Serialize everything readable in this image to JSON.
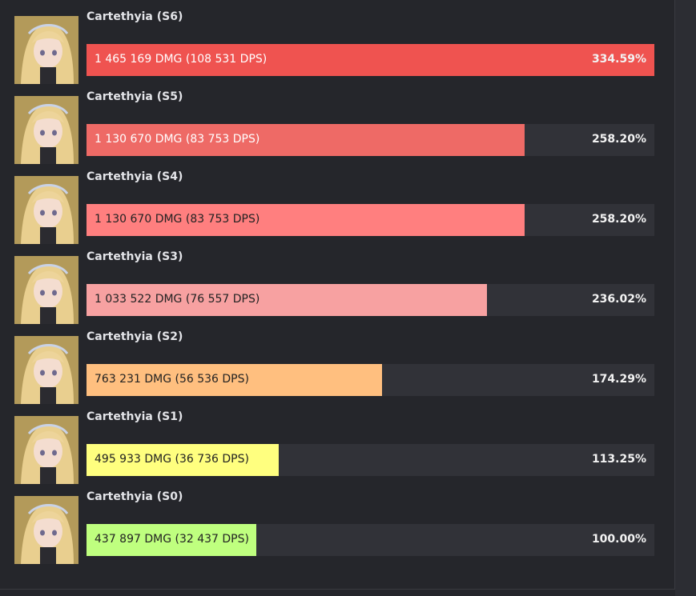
{
  "chart_data": {
    "type": "bar",
    "categories": [
      "Cartethyia (S6)",
      "Cartethyia (S5)",
      "Cartethyia (S4)",
      "Cartethyia (S3)",
      "Cartethyia (S2)",
      "Cartethyia (S1)",
      "Cartethyia (S0)"
    ],
    "damage_labels": [
      "1 465 169 DMG (108 531 DPS)",
      "1 130 670 DMG (83 753 DPS)",
      "1 130 670 DMG (83 753 DPS)",
      "1 033 522 DMG (76 557 DPS)",
      "763 231 DMG (56 536 DPS)",
      "495 933 DMG (36 736 DPS)",
      "437 897 DMG (32 437 DPS)"
    ],
    "values": [
      334.59,
      258.2,
      258.2,
      236.02,
      174.29,
      113.25,
      100
    ],
    "value_labels": [
      "334.59%",
      "258.20%",
      "258.20%",
      "236.02%",
      "174.29%",
      "113.25%",
      "100.00%"
    ],
    "colors": [
      "#ef5350",
      "#ee6a66",
      "#ff7f7f",
      "#f7a1a1",
      "#ffbf7f",
      "#ffff7f",
      "#bfff7f"
    ]
  }
}
